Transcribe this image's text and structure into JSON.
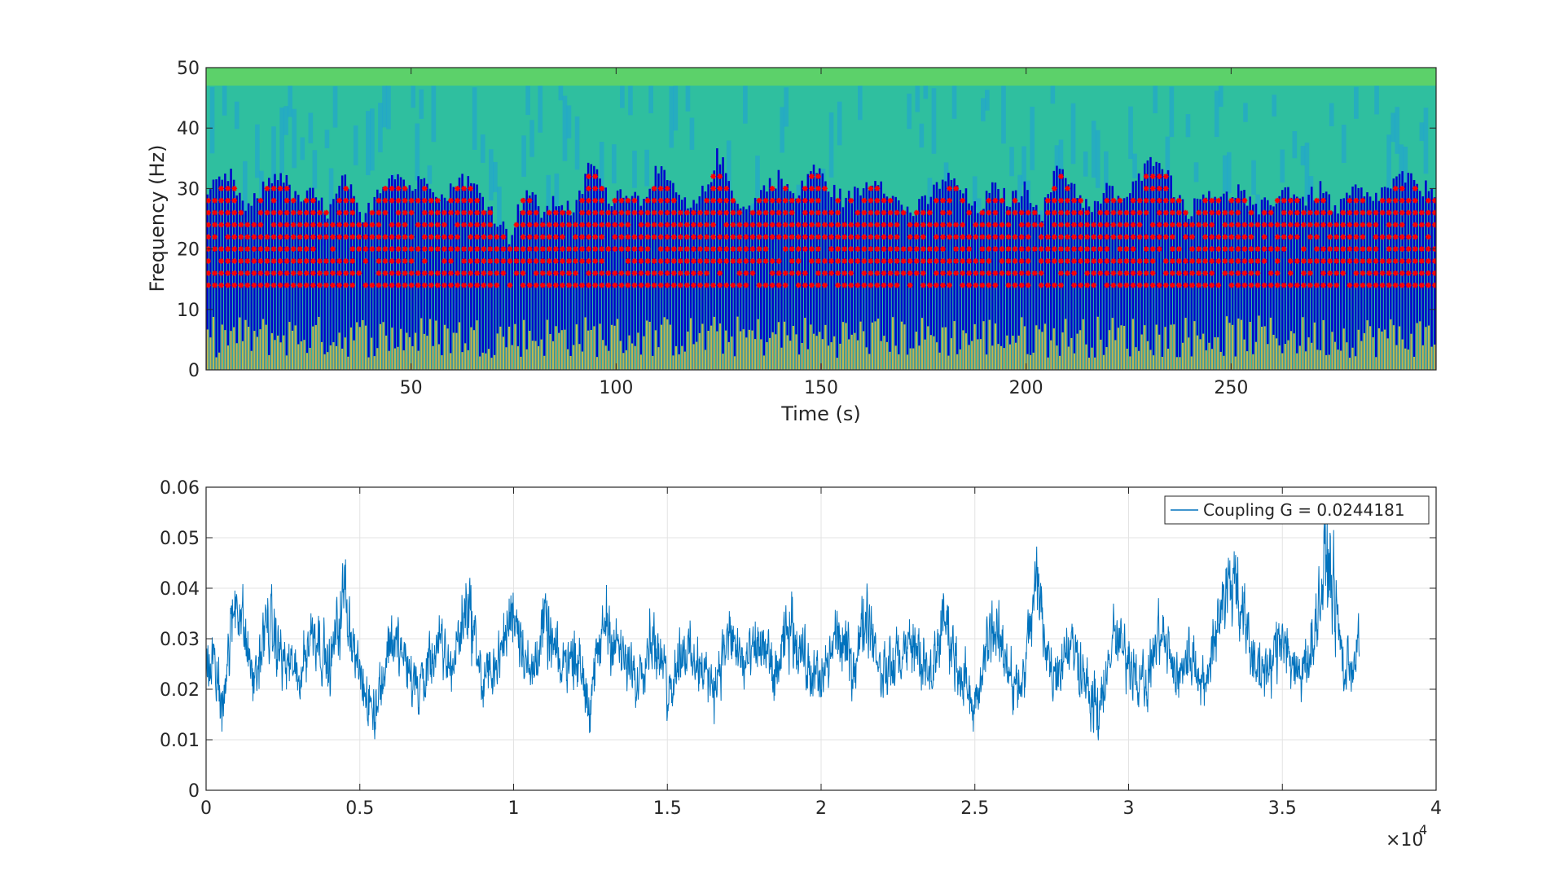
{
  "chart_data": [
    {
      "type": "heatmap",
      "subtype": "spectrogram with peak markers",
      "xlabel": "Time (s)",
      "ylabel": "Frequency (Hz)",
      "xlim": [
        0,
        300
      ],
      "ylim": [
        0,
        50
      ],
      "xticks": [
        50,
        100,
        150,
        200,
        250
      ],
      "yticks": [
        0,
        10,
        20,
        30,
        40,
        50
      ],
      "grid": false,
      "colormap": [
        "#440154",
        "#0000cc",
        "#1f9fd8",
        "#2fbf9f",
        "#5cd16a",
        "#e0d93a"
      ],
      "marker_color": "#ff0000",
      "marker_style": "asterisk",
      "marker_band_hz": [
        14,
        36
      ],
      "marker_frequencies_hz": [
        14,
        16,
        18,
        20,
        22,
        24,
        26,
        28,
        30,
        32
      ],
      "upper_envelope_hz": [
        [
          2,
          30
        ],
        [
          6,
          32
        ],
        [
          10,
          26
        ],
        [
          14,
          30
        ],
        [
          18,
          33
        ],
        [
          22,
          28
        ],
        [
          26,
          29
        ],
        [
          30,
          26
        ],
        [
          34,
          32
        ],
        [
          38,
          24
        ],
        [
          42,
          30
        ],
        [
          46,
          33
        ],
        [
          50,
          30
        ],
        [
          54,
          32
        ],
        [
          58,
          28
        ],
        [
          62,
          32
        ],
        [
          66,
          30
        ],
        [
          70,
          26
        ],
        [
          74,
          22
        ],
        [
          78,
          30
        ],
        [
          82,
          26
        ],
        [
          86,
          28
        ],
        [
          90,
          26
        ],
        [
          94,
          35
        ],
        [
          98,
          28
        ],
        [
          102,
          30
        ],
        [
          106,
          28
        ],
        [
          110,
          33
        ],
        [
          114,
          30
        ],
        [
          118,
          26
        ],
        [
          122,
          30
        ],
        [
          125,
          36
        ],
        [
          128,
          30
        ],
        [
          132,
          26
        ],
        [
          136,
          30
        ],
        [
          140,
          32
        ],
        [
          144,
          28
        ],
        [
          148,
          34
        ],
        [
          152,
          30
        ],
        [
          156,
          28
        ],
        [
          160,
          30
        ],
        [
          164,
          32
        ],
        [
          168,
          28
        ],
        [
          172,
          26
        ],
        [
          176,
          28
        ],
        [
          180,
          32
        ],
        [
          184,
          30
        ],
        [
          188,
          26
        ],
        [
          192,
          30
        ],
        [
          196,
          28
        ],
        [
          200,
          30
        ],
        [
          204,
          26
        ],
        [
          208,
          34
        ],
        [
          212,
          30
        ],
        [
          216,
          26
        ],
        [
          220,
          30
        ],
        [
          224,
          28
        ],
        [
          228,
          32
        ],
        [
          232,
          36
        ],
        [
          236,
          30
        ],
        [
          240,
          26
        ],
        [
          244,
          30
        ],
        [
          248,
          28
        ],
        [
          252,
          30
        ],
        [
          256,
          26
        ],
        [
          260,
          28
        ],
        [
          264,
          30
        ],
        [
          268,
          28
        ],
        [
          272,
          30
        ],
        [
          276,
          26
        ],
        [
          280,
          30
        ],
        [
          284,
          28
        ],
        [
          288,
          30
        ],
        [
          292,
          32
        ],
        [
          296,
          30
        ]
      ]
    },
    {
      "type": "line",
      "xlabel": "",
      "ylabel": "",
      "xlim": [
        0,
        40000
      ],
      "ylim": [
        0,
        0.06
      ],
      "xticks": [
        0,
        5000,
        10000,
        15000,
        20000,
        25000,
        30000,
        35000,
        40000
      ],
      "xtick_labels": [
        "0",
        "0.5",
        "1",
        "1.5",
        "2",
        "2.5",
        "3",
        "3.5",
        "4"
      ],
      "yticks": [
        0,
        0.01,
        0.02,
        0.03,
        0.04,
        0.05,
        0.06
      ],
      "ytick_labels": [
        "0",
        "0.01",
        "0.02",
        "0.03",
        "0.04",
        "0.05",
        "0.06"
      ],
      "x_exponent_base": "×10",
      "x_exponent_power": "4",
      "grid": true,
      "legend_position": "top-right",
      "series": [
        {
          "name": "Coupling G = 0.0244181",
          "color": "#0072bd",
          "x_range": [
            0,
            37500
          ],
          "envelope": [
            [
              0,
              0.025
            ],
            [
              200,
              0.027
            ],
            [
              500,
              0.016
            ],
            [
              1000,
              0.044
            ],
            [
              1500,
              0.02
            ],
            [
              2000,
              0.036
            ],
            [
              2500,
              0.026
            ],
            [
              3000,
              0.022
            ],
            [
              3500,
              0.035
            ],
            [
              4000,
              0.024
            ],
            [
              4500,
              0.043
            ],
            [
              5000,
              0.02
            ],
            [
              5500,
              0.013
            ],
            [
              6000,
              0.032
            ],
            [
              6500,
              0.026
            ],
            [
              7000,
              0.018
            ],
            [
              7500,
              0.03
            ],
            [
              8000,
              0.024
            ],
            [
              8500,
              0.042
            ],
            [
              9000,
              0.02
            ],
            [
              9500,
              0.026
            ],
            [
              10000,
              0.04
            ],
            [
              10500,
              0.022
            ],
            [
              11000,
              0.035
            ],
            [
              11500,
              0.024
            ],
            [
              12000,
              0.028
            ],
            [
              12500,
              0.018
            ],
            [
              13000,
              0.037
            ],
            [
              13500,
              0.026
            ],
            [
              14000,
              0.022
            ],
            [
              14500,
              0.033
            ],
            [
              15000,
              0.018
            ],
            [
              15500,
              0.03
            ],
            [
              16000,
              0.024
            ],
            [
              16500,
              0.02
            ],
            [
              17000,
              0.032
            ],
            [
              17500,
              0.024
            ],
            [
              18000,
              0.03
            ],
            [
              18500,
              0.022
            ],
            [
              19000,
              0.035
            ],
            [
              19500,
              0.026
            ],
            [
              20000,
              0.02
            ],
            [
              20500,
              0.033
            ],
            [
              21000,
              0.024
            ],
            [
              21500,
              0.039
            ],
            [
              22000,
              0.022
            ],
            [
              22500,
              0.026
            ],
            [
              23000,
              0.031
            ],
            [
              23500,
              0.02
            ],
            [
              24000,
              0.037
            ],
            [
              24500,
              0.024
            ],
            [
              25000,
              0.012
            ],
            [
              25500,
              0.036
            ],
            [
              26000,
              0.026
            ],
            [
              26500,
              0.018
            ],
            [
              27000,
              0.046
            ],
            [
              27500,
              0.022
            ],
            [
              28000,
              0.03
            ],
            [
              28500,
              0.024
            ],
            [
              29000,
              0.01
            ],
            [
              29500,
              0.032
            ],
            [
              30000,
              0.026
            ],
            [
              30500,
              0.018
            ],
            [
              31000,
              0.034
            ],
            [
              31500,
              0.022
            ],
            [
              32000,
              0.028
            ],
            [
              32500,
              0.02
            ],
            [
              33000,
              0.042
            ],
            [
              33500,
              0.046
            ],
            [
              34000,
              0.026
            ],
            [
              34500,
              0.022
            ],
            [
              35000,
              0.034
            ],
            [
              35500,
              0.02
            ],
            [
              36000,
              0.032
            ],
            [
              36500,
              0.053
            ],
            [
              37000,
              0.022
            ],
            [
              37500,
              0.03
            ]
          ]
        }
      ]
    }
  ]
}
